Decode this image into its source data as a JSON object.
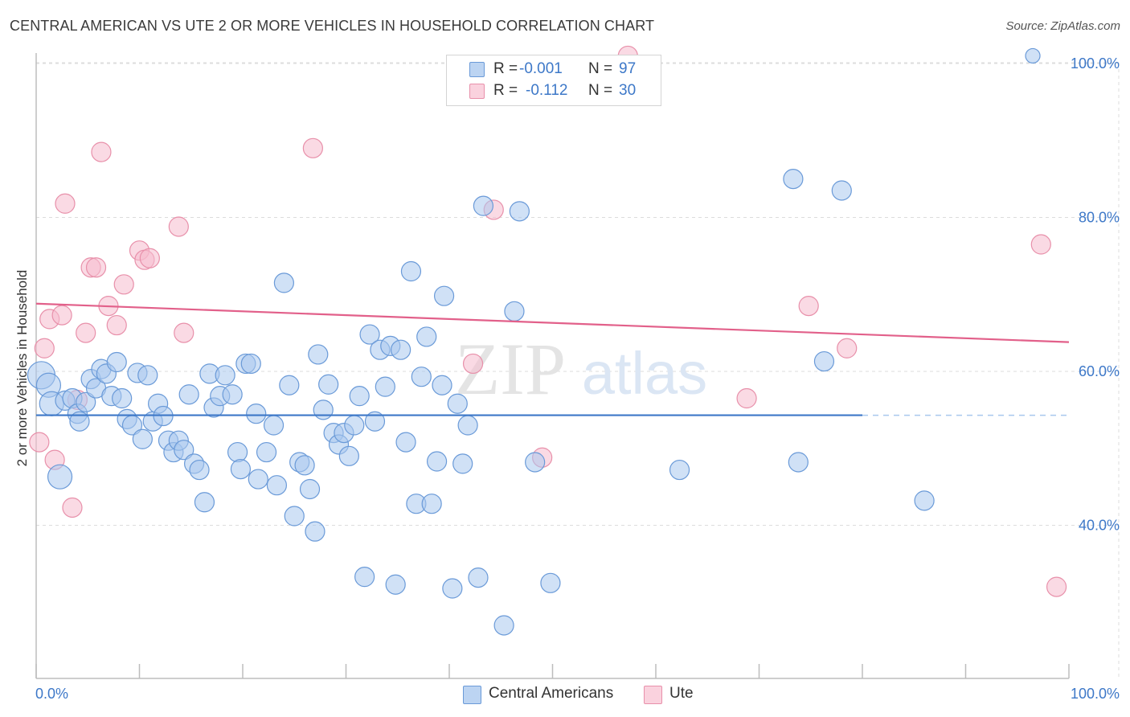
{
  "title": "CENTRAL AMERICAN VS UTE 2 OR MORE VEHICLES IN HOUSEHOLD CORRELATION CHART",
  "source": "Source: ZipAtlas.com",
  "watermark": {
    "zip": "ZIP",
    "atlas": "atlas"
  },
  "legend": {
    "rows": [
      {
        "r_label": "R =",
        "r_value": "-0.001",
        "n_label": "N =",
        "n_value": "97"
      },
      {
        "r_label": "R =",
        "r_value": "-0.112",
        "n_label": "N =",
        "n_value": "30"
      }
    ]
  },
  "colors": {
    "blue_fill": "#a9c8ee",
    "blue_stroke": "#6a9ad8",
    "blue_line": "#3d78c8",
    "pink_fill": "#f6bccd",
    "pink_stroke": "#e890aa",
    "pink_line": "#e2608a",
    "axis_text": "#3d78c8",
    "grid": "#dcdcdc"
  },
  "chart_data": {
    "type": "scatter",
    "title": "CENTRAL AMERICAN VS UTE 2 OR MORE VEHICLES IN HOUSEHOLD CORRELATION CHART",
    "xlabel": "",
    "ylabel": "2 or more Vehicles in Household",
    "xlim": [
      0,
      100
    ],
    "ylim": [
      20,
      104
    ],
    "x_tick_labels": [
      "0.0%",
      "100.0%"
    ],
    "y_ticks": [
      40,
      60,
      80,
      100
    ],
    "y_tick_labels": [
      "40.0%",
      "60.0%",
      "80.0%",
      "100.0%"
    ],
    "legend_position": "top-center",
    "series": [
      {
        "name": "Central Americans",
        "color": "#a9c8ee",
        "r": -0.001,
        "n": 97,
        "trend": {
          "x0": 0,
          "y0": 54.3,
          "x1": 80,
          "y1": 54.3,
          "dash_to": 100
        },
        "points": [
          [
            0.5,
            59.5,
            3
          ],
          [
            1.2,
            58.2,
            2
          ],
          [
            1.5,
            55.8,
            2
          ],
          [
            2.3,
            46.3,
            2
          ],
          [
            2.8,
            56.2,
            1
          ],
          [
            3.5,
            56.5,
            1
          ],
          [
            4.0,
            54.5,
            1
          ],
          [
            4.2,
            53.5,
            1
          ],
          [
            4.8,
            56.0,
            1
          ],
          [
            5.3,
            59.0,
            1
          ],
          [
            5.8,
            57.8,
            1
          ],
          [
            6.3,
            60.3,
            1
          ],
          [
            6.8,
            59.7,
            1
          ],
          [
            7.3,
            56.8,
            1
          ],
          [
            7.8,
            61.2,
            1
          ],
          [
            8.3,
            56.5,
            1
          ],
          [
            8.8,
            53.8,
            1
          ],
          [
            9.3,
            53.0,
            1
          ],
          [
            9.8,
            59.8,
            1
          ],
          [
            10.3,
            51.2,
            1
          ],
          [
            10.8,
            59.5,
            1
          ],
          [
            11.3,
            53.5,
            1
          ],
          [
            11.8,
            55.8,
            1
          ],
          [
            12.3,
            54.2,
            1
          ],
          [
            12.8,
            51.0,
            1
          ],
          [
            13.3,
            49.5,
            1
          ],
          [
            13.8,
            51.0,
            1
          ],
          [
            14.3,
            49.8,
            1
          ],
          [
            14.8,
            57.0,
            1
          ],
          [
            15.3,
            48.0,
            1
          ],
          [
            15.8,
            47.2,
            1
          ],
          [
            16.3,
            43.0,
            1
          ],
          [
            16.8,
            59.7,
            1
          ],
          [
            17.2,
            55.3,
            1
          ],
          [
            17.8,
            56.8,
            1
          ],
          [
            18.3,
            59.5,
            1
          ],
          [
            19.0,
            57.0,
            1
          ],
          [
            19.5,
            49.5,
            1
          ],
          [
            19.8,
            47.3,
            1
          ],
          [
            20.3,
            61.0,
            1
          ],
          [
            20.8,
            61.0,
            1
          ],
          [
            21.3,
            54.5,
            1
          ],
          [
            21.5,
            46.0,
            1
          ],
          [
            22.3,
            49.5,
            1
          ],
          [
            23.0,
            53.0,
            1
          ],
          [
            23.3,
            45.2,
            1
          ],
          [
            24.0,
            71.5,
            1
          ],
          [
            24.5,
            58.2,
            1
          ],
          [
            25.0,
            41.2,
            1
          ],
          [
            25.5,
            48.2,
            1
          ],
          [
            26.0,
            47.8,
            1
          ],
          [
            26.5,
            44.7,
            1
          ],
          [
            27.0,
            39.2,
            1
          ],
          [
            27.3,
            62.2,
            1
          ],
          [
            27.8,
            55.0,
            1
          ],
          [
            28.3,
            58.3,
            1
          ],
          [
            28.8,
            52.0,
            1
          ],
          [
            29.3,
            50.5,
            1
          ],
          [
            29.8,
            52.0,
            1
          ],
          [
            30.3,
            49.0,
            1
          ],
          [
            30.8,
            53.0,
            1
          ],
          [
            31.3,
            56.8,
            1
          ],
          [
            31.8,
            33.3,
            1
          ],
          [
            32.3,
            64.8,
            1
          ],
          [
            32.8,
            53.5,
            1
          ],
          [
            33.3,
            62.8,
            1
          ],
          [
            33.8,
            58.0,
            1
          ],
          [
            34.3,
            63.3,
            1
          ],
          [
            34.8,
            32.3,
            1
          ],
          [
            35.3,
            62.8,
            1
          ],
          [
            35.8,
            50.8,
            1
          ],
          [
            36.3,
            73.0,
            1
          ],
          [
            36.8,
            42.8,
            1
          ],
          [
            37.3,
            59.3,
            1
          ],
          [
            37.8,
            64.5,
            1
          ],
          [
            38.3,
            42.8,
            1
          ],
          [
            38.8,
            48.3,
            1
          ],
          [
            39.3,
            58.2,
            1
          ],
          [
            39.5,
            69.8,
            1
          ],
          [
            40.3,
            31.8,
            1
          ],
          [
            40.8,
            55.8,
            1
          ],
          [
            41.3,
            48.0,
            1
          ],
          [
            41.8,
            53.0,
            1
          ],
          [
            42.8,
            33.2,
            1
          ],
          [
            43.3,
            81.5,
            1
          ],
          [
            45.3,
            27.0,
            1
          ],
          [
            46.3,
            67.8,
            1
          ],
          [
            46.8,
            80.8,
            1
          ],
          [
            48.3,
            48.2,
            1
          ],
          [
            49.8,
            32.5,
            1
          ],
          [
            62.3,
            47.2,
            1
          ],
          [
            73.3,
            85.0,
            1
          ],
          [
            73.8,
            48.2,
            1
          ],
          [
            76.3,
            61.3,
            1
          ],
          [
            78.0,
            83.5,
            1
          ],
          [
            86.0,
            43.2,
            1
          ],
          [
            96.5,
            101.0,
            0
          ]
        ]
      },
      {
        "name": "Ute",
        "color": "#f6bccd",
        "r": -0.112,
        "n": 30,
        "trend": {
          "x0": 0,
          "y0": 68.8,
          "x1": 100,
          "y1": 63.8
        },
        "points": [
          [
            0.3,
            50.8,
            1
          ],
          [
            0.8,
            63.0,
            1
          ],
          [
            1.3,
            66.8,
            1
          ],
          [
            1.8,
            48.5,
            1
          ],
          [
            2.5,
            67.3,
            1
          ],
          [
            2.8,
            81.8,
            1
          ],
          [
            3.5,
            42.3,
            1
          ],
          [
            4.0,
            56.3,
            1
          ],
          [
            4.8,
            65.0,
            1
          ],
          [
            5.3,
            73.5,
            1
          ],
          [
            5.8,
            73.5,
            1
          ],
          [
            6.3,
            88.5,
            1
          ],
          [
            7.0,
            68.5,
            1
          ],
          [
            7.8,
            66.0,
            1
          ],
          [
            8.5,
            71.3,
            1
          ],
          [
            10.0,
            75.7,
            1
          ],
          [
            10.5,
            74.5,
            1
          ],
          [
            11.0,
            74.7,
            1
          ],
          [
            13.8,
            78.8,
            1
          ],
          [
            14.3,
            65.0,
            1
          ],
          [
            26.8,
            89.0,
            1
          ],
          [
            42.3,
            61.0,
            1
          ],
          [
            44.3,
            81.0,
            1
          ],
          [
            49.0,
            48.8,
            1
          ],
          [
            57.3,
            101.0,
            1
          ],
          [
            68.8,
            56.5,
            1
          ],
          [
            74.8,
            68.5,
            1
          ],
          [
            78.5,
            63.0,
            1
          ],
          [
            97.3,
            76.5,
            1
          ],
          [
            98.8,
            32.0,
            1
          ]
        ]
      }
    ]
  },
  "bottom_legend": [
    "Central Americans",
    "Ute"
  ]
}
